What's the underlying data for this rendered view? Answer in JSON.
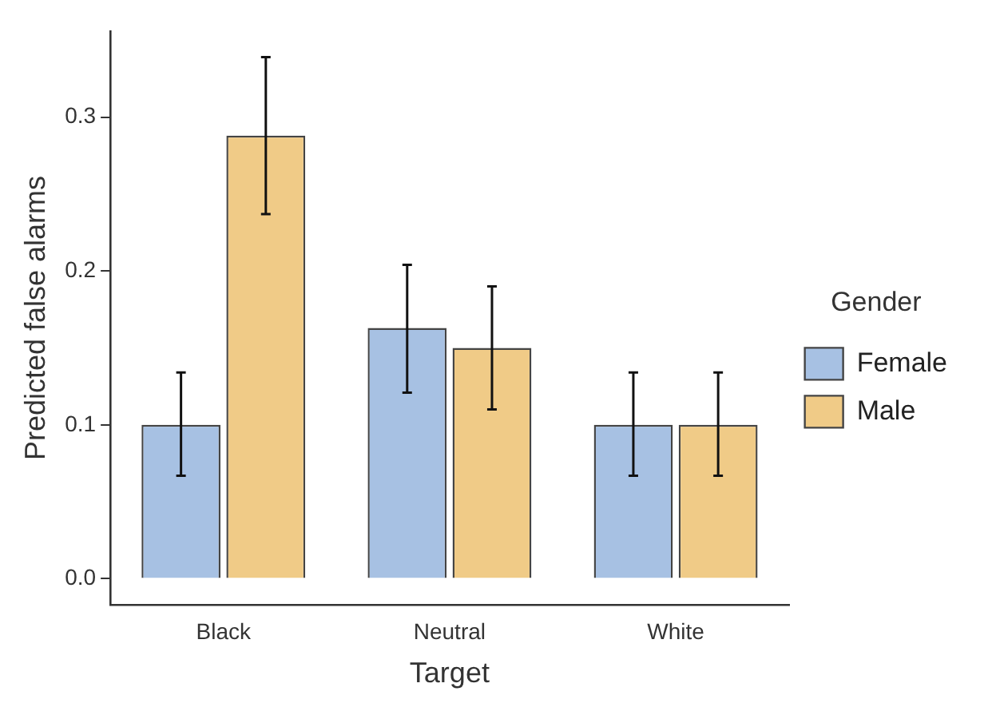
{
  "chart_data": {
    "type": "bar",
    "xlabel": "Target",
    "ylabel": "Predicted false alarms",
    "legend_title": "Gender",
    "categories": [
      "Black",
      "Neutral",
      "White"
    ],
    "series": [
      {
        "name": "Female",
        "color": "#a7c1e3",
        "values": [
          0.1,
          0.163,
          0.1
        ],
        "errors": [
          [
            0.067,
            0.134
          ],
          [
            0.121,
            0.204
          ],
          [
            0.067,
            0.134
          ]
        ]
      },
      {
        "name": "Male",
        "color": "#f0cb87",
        "values": [
          0.288,
          0.15,
          0.1
        ],
        "errors": [
          [
            0.237,
            0.339
          ],
          [
            0.11,
            0.19
          ],
          [
            0.067,
            0.134
          ]
        ]
      }
    ],
    "ylim": [
      -0.017,
      0.356
    ],
    "yticks": [
      {
        "value": 0,
        "label": "0.0"
      },
      0.1,
      0.2,
      0.3
    ],
    "grid": false,
    "legend": "right"
  }
}
